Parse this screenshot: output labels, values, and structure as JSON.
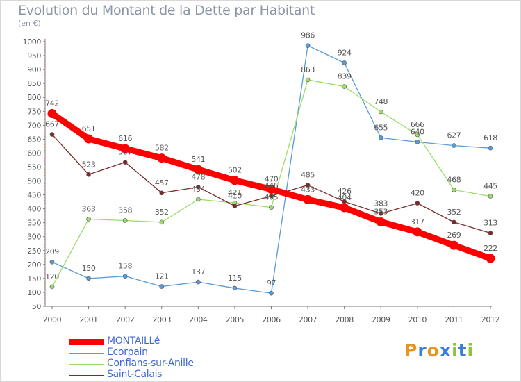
{
  "title": "Evolution du Montant de la Dette par Habitant",
  "unit": "(en €)",
  "chart_data": {
    "type": "line",
    "title": "Evolution du Montant de la Dette par Habitant",
    "ylabel": "(en €)",
    "x": [
      "2000",
      "2001",
      "2002",
      "2003",
      "2004",
      "2005",
      "2006",
      "2007",
      "2008",
      "2009",
      "2010",
      "2011",
      "2012"
    ],
    "ylim": [
      50,
      1000
    ],
    "yticks": [
      50,
      100,
      150,
      200,
      250,
      300,
      350,
      400,
      450,
      500,
      550,
      600,
      650,
      700,
      750,
      800,
      850,
      900,
      950,
      1000
    ],
    "grid": false,
    "legend_position": "bottom-left",
    "series": [
      {
        "name": "MONTAILLé",
        "color": "#ff0000",
        "values": [
          742,
          651,
          616,
          582,
          541,
          502,
          470,
          433,
          404,
          353,
          317,
          269,
          222
        ]
      },
      {
        "name": "Ecorpain",
        "color": "#5b9bd5",
        "values": [
          209,
          150,
          158,
          121,
          137,
          115,
          97,
          986,
          924,
          655,
          640,
          627,
          618
        ]
      },
      {
        "name": "Conflans-sur-Anille",
        "color": "#9bdd6b",
        "values": [
          120,
          363,
          358,
          352,
          434,
          421,
          405,
          863,
          839,
          748,
          666,
          468,
          445
        ]
      },
      {
        "name": "Saint-Calais",
        "color": "#7b2a2a",
        "values": [
          667,
          523,
          567,
          457,
          478,
          410,
          446,
          485,
          426,
          383,
          420,
          352,
          313
        ]
      }
    ]
  },
  "logo": {
    "letters": [
      "P",
      "r",
      "o",
      "x",
      "i",
      "t",
      "i"
    ],
    "colors": [
      "#e8941f",
      "#3a7fd5",
      "#e8941f",
      "#3a7fd5",
      "#8bc53f",
      "#3a7fd5",
      "#8bc53f"
    ]
  }
}
